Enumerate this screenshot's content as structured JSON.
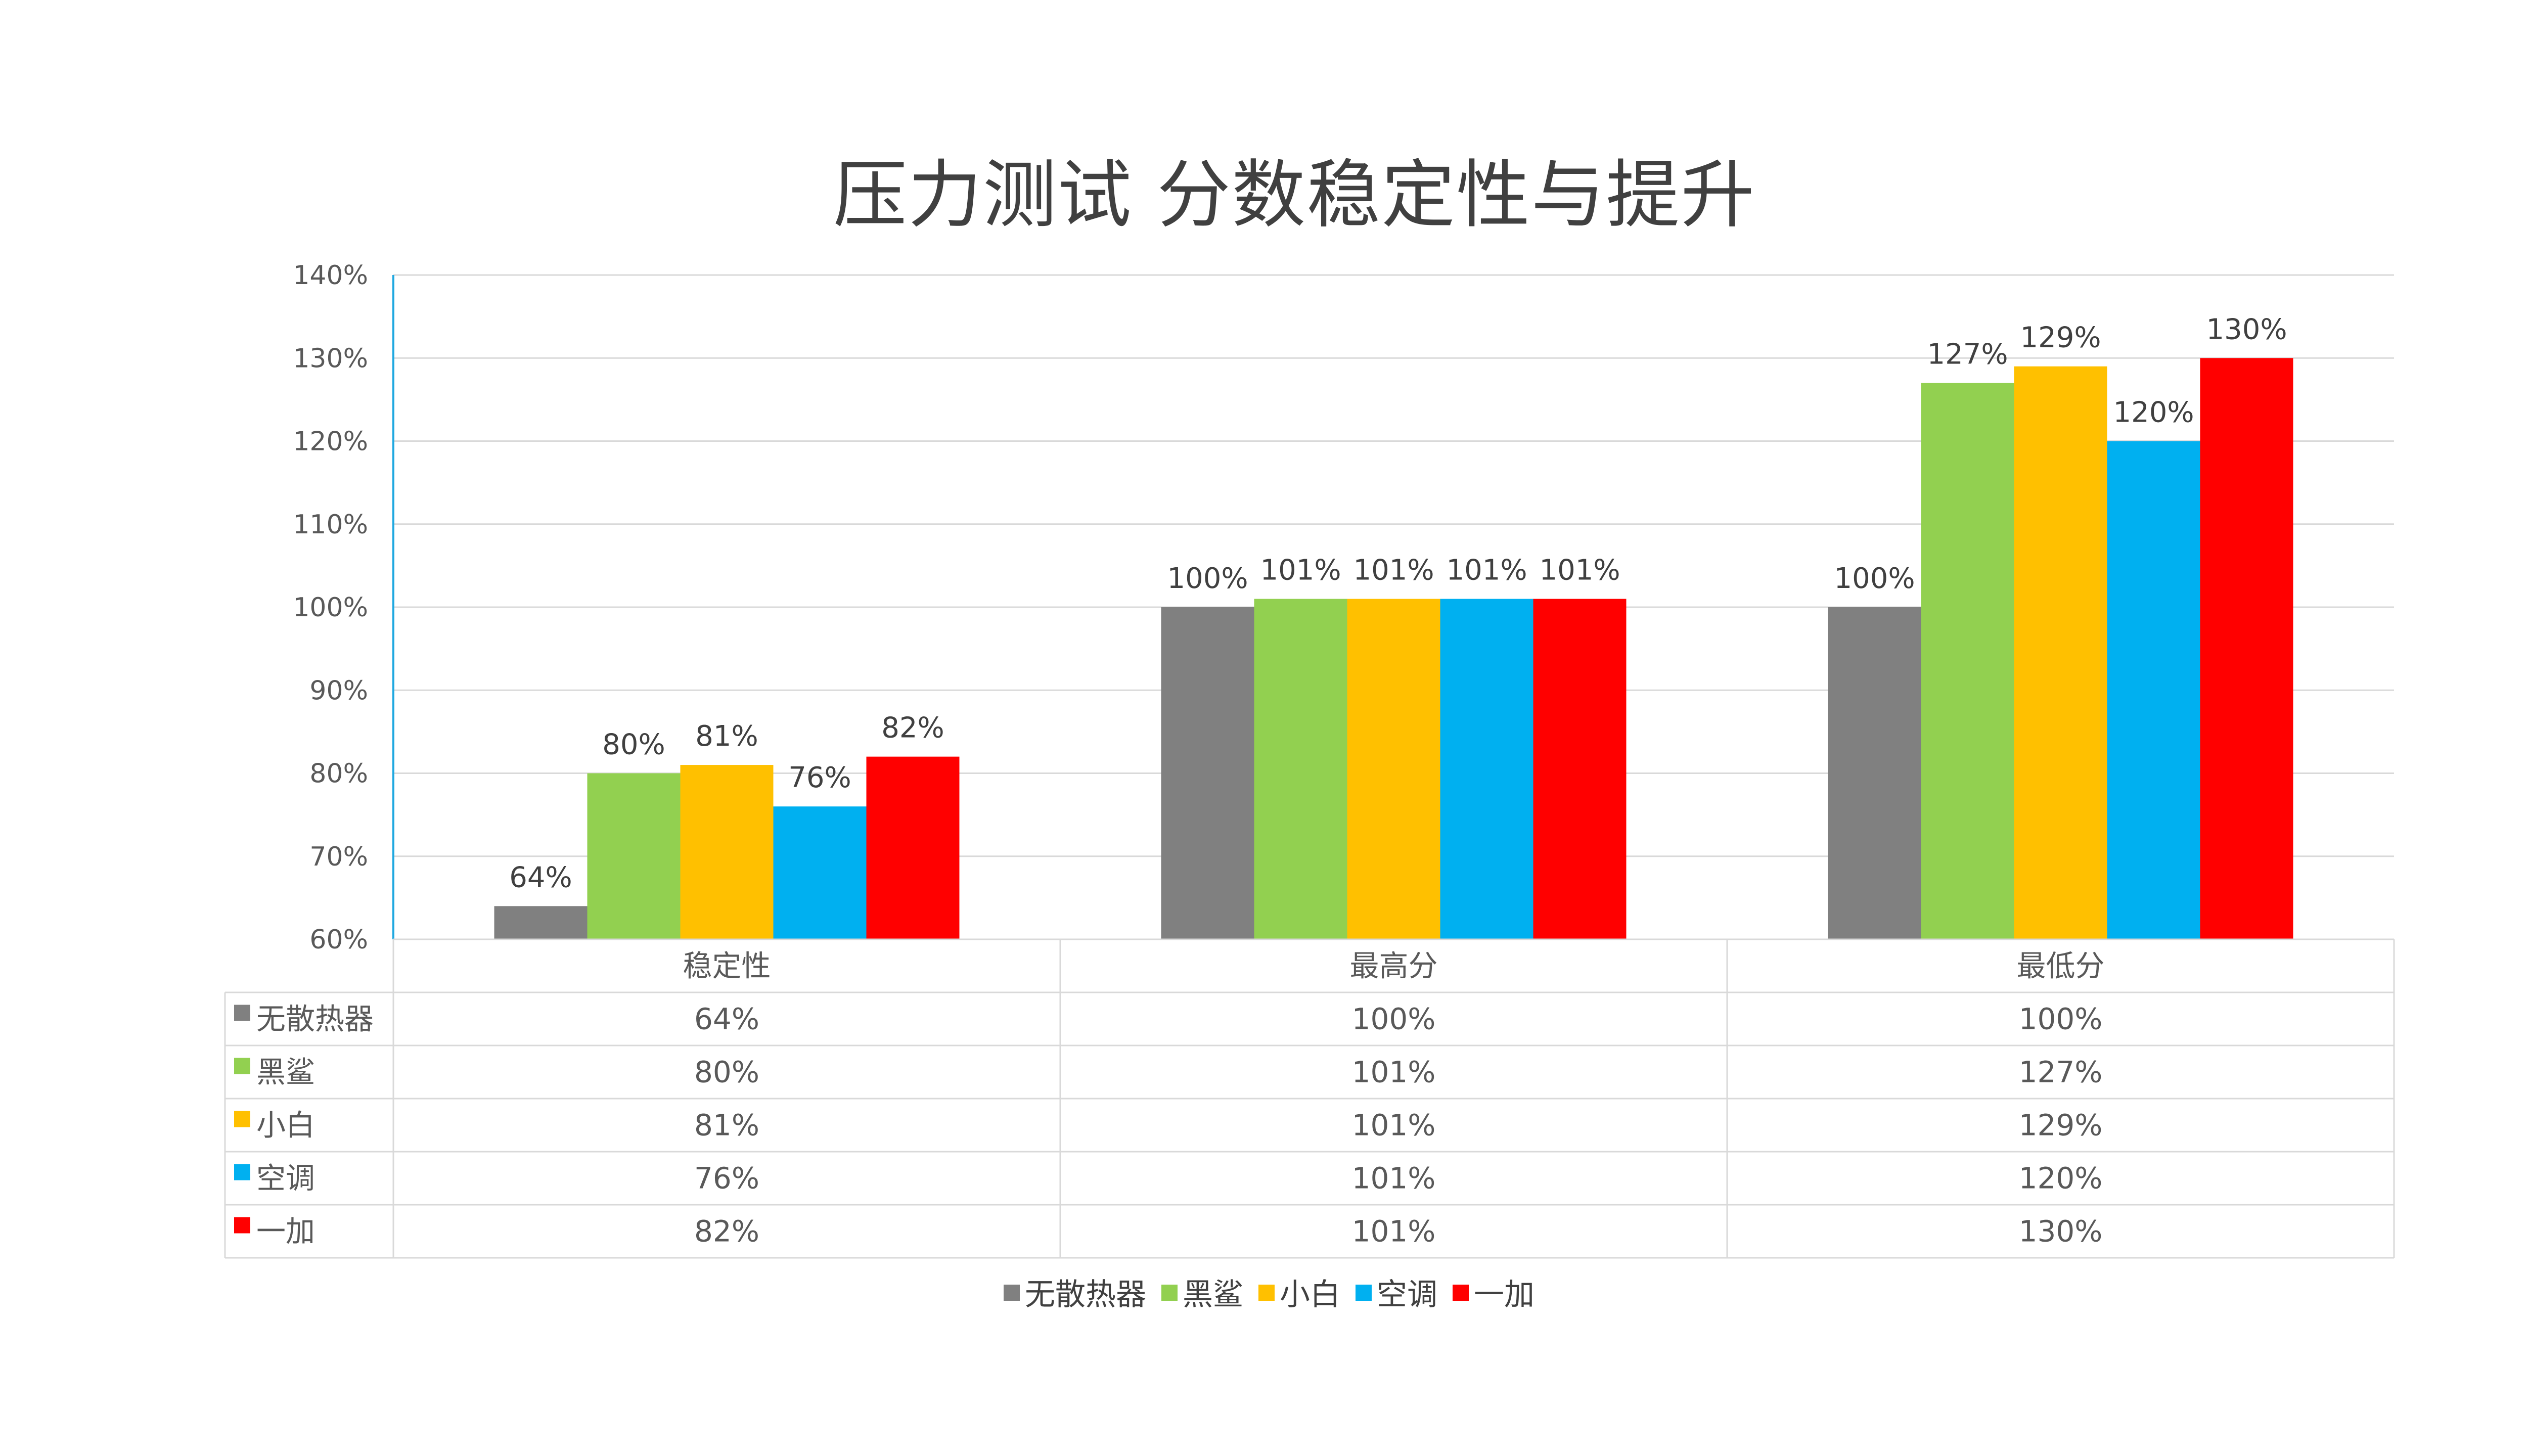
{
  "chart_data": {
    "type": "bar",
    "title": "压力测试 分数稳定性与提升",
    "categories": [
      "稳定性",
      "最高分",
      "最低分"
    ],
    "series": [
      {
        "name": "无散热器",
        "color": "#808080",
        "values": [
          64,
          100,
          100
        ]
      },
      {
        "name": "黑鲨",
        "color": "#92D050",
        "values": [
          80,
          101,
          127
        ]
      },
      {
        "name": "小白",
        "color": "#FFC000",
        "values": [
          81,
          101,
          129
        ]
      },
      {
        "name": "空调",
        "color": "#00B0F0",
        "values": [
          76,
          101,
          120
        ]
      },
      {
        "name": "一加",
        "color": "#FF0000",
        "values": [
          82,
          101,
          130
        ]
      }
    ],
    "ylim": [
      60,
      140
    ],
    "yticks": [
      "60%",
      "70%",
      "80%",
      "90%",
      "100%",
      "110%",
      "120%",
      "130%",
      "140%"
    ],
    "value_suffix": "%",
    "grid": true,
    "data_table": true,
    "legend_position": "bottom"
  }
}
